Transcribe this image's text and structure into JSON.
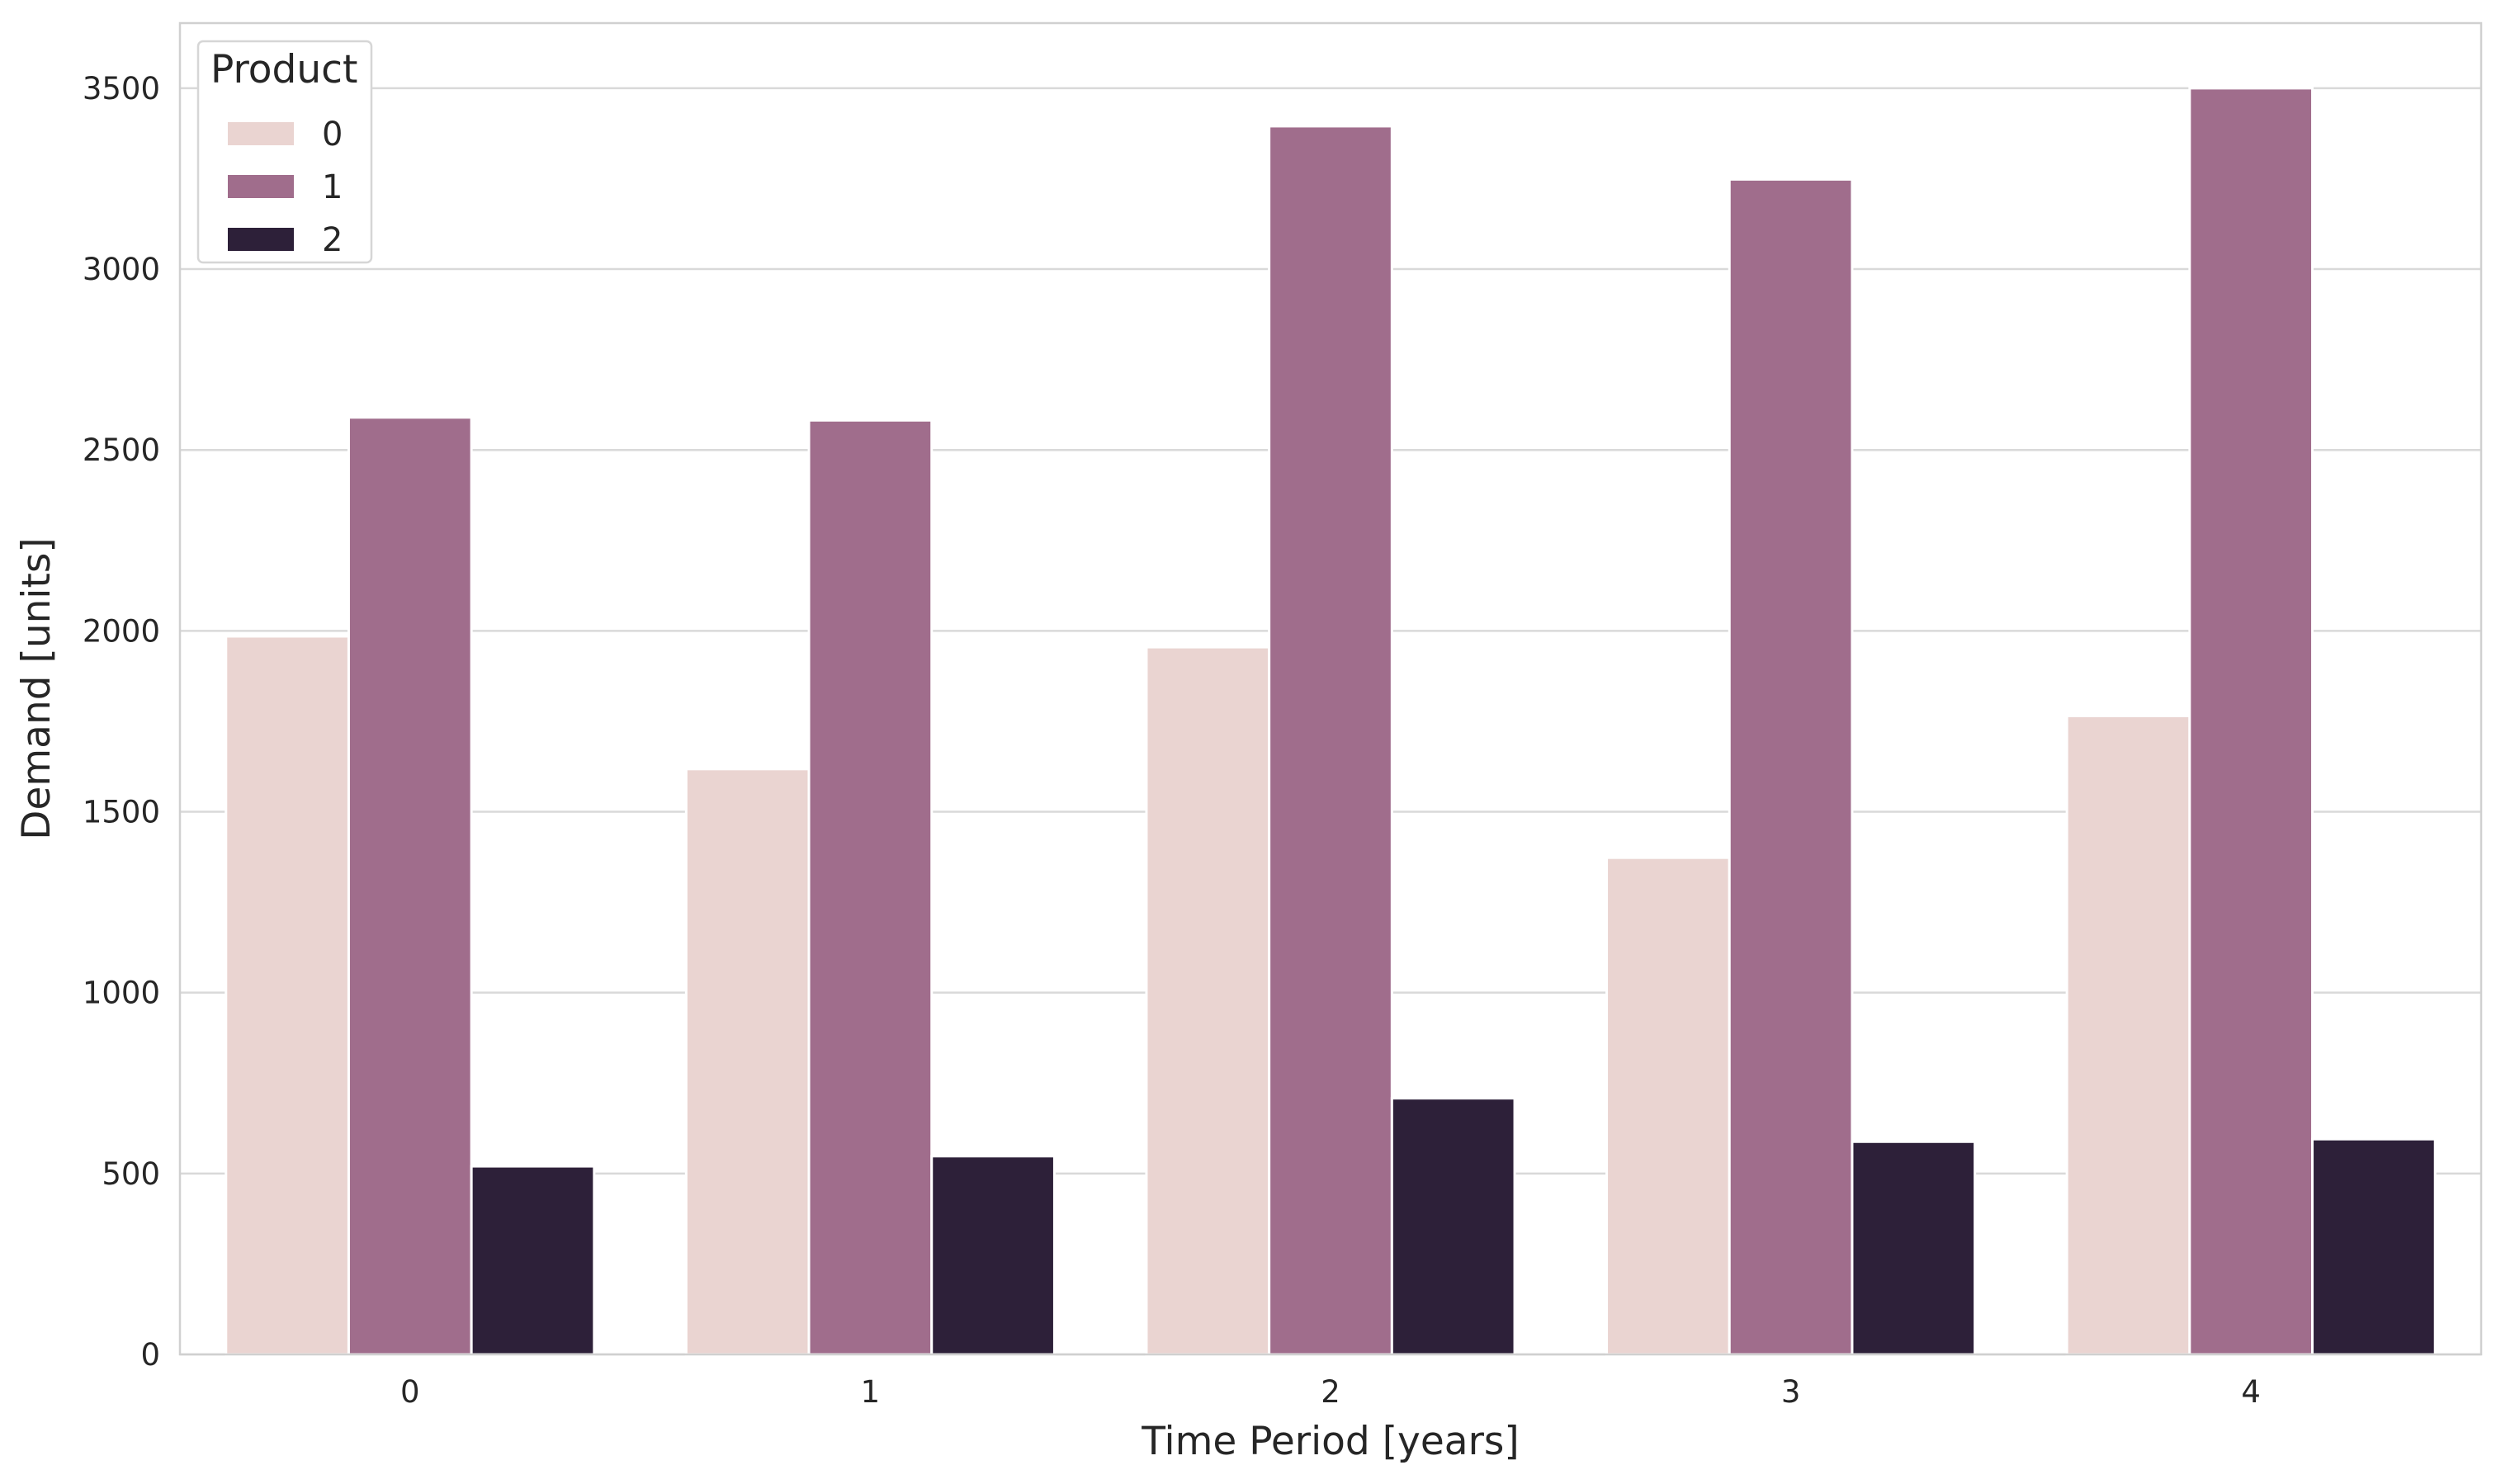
{
  "chart_data": {
    "type": "bar",
    "title": "",
    "xlabel": "Time Period [years]",
    "ylabel": "Demand [units]",
    "categories": [
      "0",
      "1",
      "2",
      "3",
      "4"
    ],
    "legend": {
      "title": "Product",
      "placement": "top-left"
    },
    "series": [
      {
        "name": "0",
        "color": "#ead4d1",
        "values": [
          1985,
          1618,
          1955,
          1373,
          1765
        ]
      },
      {
        "name": "1",
        "color": "#a06d8c",
        "values": [
          2590,
          2582,
          3395,
          3248,
          3500
        ]
      },
      {
        "name": "2",
        "color": "#2d2039",
        "values": [
          520,
          548,
          708,
          588,
          595
        ]
      }
    ],
    "ylim": [
      0,
      3680
    ],
    "yticks": [
      0,
      500,
      1000,
      1500,
      2000,
      2500,
      3000,
      3500
    ],
    "grid": true,
    "grid_color": "#d9d9d9",
    "background": "#ffffff"
  }
}
